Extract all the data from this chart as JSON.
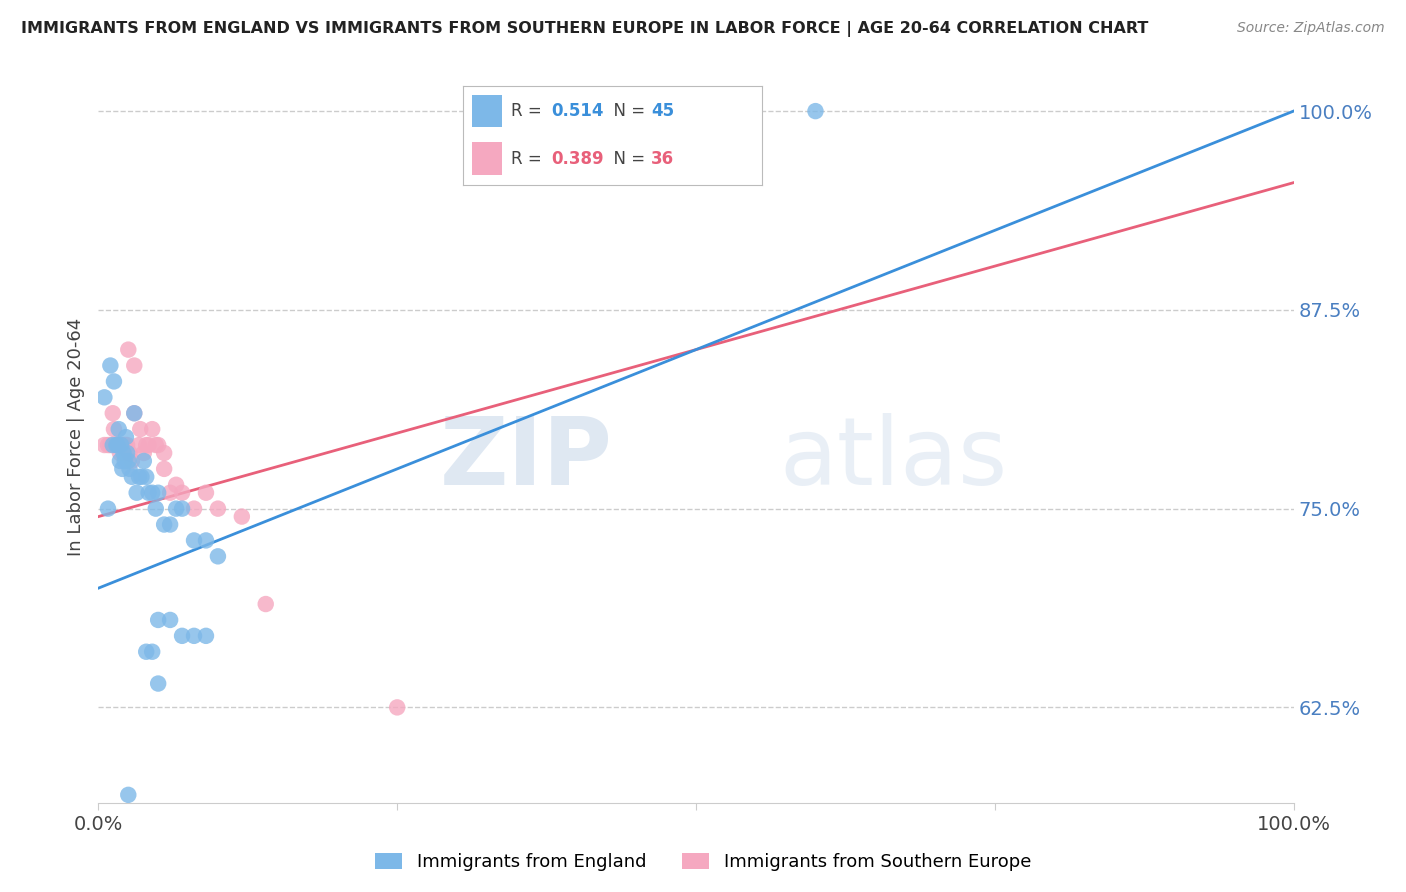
{
  "title": "IMMIGRANTS FROM ENGLAND VS IMMIGRANTS FROM SOUTHERN EUROPE IN LABOR FORCE | AGE 20-64 CORRELATION CHART",
  "source": "Source: ZipAtlas.com",
  "ylabel": "In Labor Force | Age 20-64",
  "england_color": "#7db8e8",
  "southern_color": "#f5a8c0",
  "england_R": 0.514,
  "england_N": 45,
  "southern_R": 0.389,
  "southern_N": 36,
  "england_line_color": "#3a8fda",
  "southern_line_color": "#e8607a",
  "england_line_intercept": 0.7,
  "england_line_slope": 0.3,
  "southern_line_intercept": 0.745,
  "southern_line_slope": 0.21,
  "xlim": [
    0.0,
    1.0
  ],
  "ylim": [
    0.565,
    1.025
  ],
  "yticks": [
    0.625,
    0.75,
    0.875,
    1.0
  ],
  "yticklabels": [
    "62.5%",
    "75.0%",
    "87.5%",
    "100.0%"
  ],
  "watermark_zip": "ZIP",
  "watermark_atlas": "atlas",
  "background_color": "#ffffff",
  "grid_color": "#cccccc",
  "england_x": [
    0.005,
    0.008,
    0.01,
    0.012,
    0.013,
    0.015,
    0.016,
    0.017,
    0.018,
    0.019,
    0.02,
    0.021,
    0.022,
    0.023,
    0.024,
    0.025,
    0.026,
    0.028,
    0.03,
    0.032,
    0.034,
    0.036,
    0.038,
    0.04,
    0.042,
    0.045,
    0.048,
    0.05,
    0.055,
    0.06,
    0.065,
    0.07,
    0.08,
    0.09,
    0.1,
    0.05,
    0.06,
    0.07,
    0.08,
    0.09,
    0.04,
    0.045,
    0.05,
    0.6,
    0.025
  ],
  "england_y": [
    0.82,
    0.75,
    0.84,
    0.79,
    0.83,
    0.79,
    0.79,
    0.8,
    0.78,
    0.79,
    0.775,
    0.785,
    0.78,
    0.795,
    0.785,
    0.78,
    0.775,
    0.77,
    0.81,
    0.76,
    0.77,
    0.77,
    0.78,
    0.77,
    0.76,
    0.76,
    0.75,
    0.76,
    0.74,
    0.74,
    0.75,
    0.75,
    0.73,
    0.73,
    0.72,
    0.68,
    0.68,
    0.67,
    0.67,
    0.67,
    0.66,
    0.66,
    0.64,
    1.0,
    0.57
  ],
  "southern_x": [
    0.005,
    0.008,
    0.01,
    0.012,
    0.013,
    0.015,
    0.016,
    0.017,
    0.018,
    0.02,
    0.022,
    0.024,
    0.026,
    0.028,
    0.03,
    0.034,
    0.038,
    0.042,
    0.048,
    0.055,
    0.025,
    0.03,
    0.035,
    0.04,
    0.045,
    0.05,
    0.055,
    0.06,
    0.065,
    0.07,
    0.08,
    0.09,
    0.1,
    0.12,
    0.14,
    0.25
  ],
  "southern_y": [
    0.79,
    0.79,
    0.79,
    0.81,
    0.8,
    0.79,
    0.79,
    0.79,
    0.785,
    0.79,
    0.79,
    0.79,
    0.785,
    0.78,
    0.81,
    0.79,
    0.785,
    0.79,
    0.79,
    0.785,
    0.85,
    0.84,
    0.8,
    0.79,
    0.8,
    0.79,
    0.775,
    0.76,
    0.765,
    0.76,
    0.75,
    0.76,
    0.75,
    0.745,
    0.69,
    0.625
  ]
}
